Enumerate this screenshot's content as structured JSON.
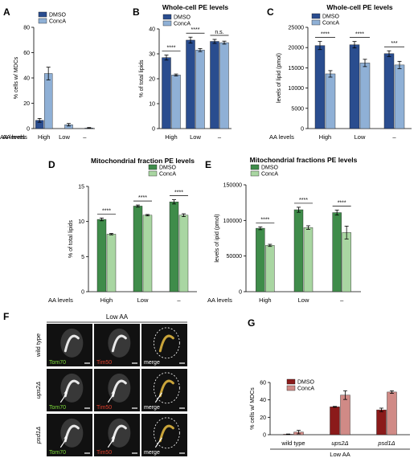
{
  "colors": {
    "blue_dark": "#2a4d8f",
    "blue_light": "#8fb0d6",
    "green_dark": "#3f8c4a",
    "green_light": "#a9d6a2",
    "red_dark": "#8b1a1a",
    "red_light": "#d08a86",
    "tom70": "#7ddc3a",
    "tim50": "#e0402e",
    "merge": "#ffffff"
  },
  "chart_data": [
    {
      "id": "A",
      "type": "bar",
      "panel_letter": "A",
      "title": "",
      "ylabel": "% cells w/ MDCs",
      "ylim": [
        0,
        80
      ],
      "yticks": [
        0,
        20,
        40,
        60,
        80
      ],
      "row_label": "AA levels",
      "categories": [
        "High",
        "Low",
        "–"
      ],
      "legend": "top-left",
      "colors": [
        "#2a4d8f",
        "#8fb0d6"
      ],
      "series": [
        {
          "name": "DMSO",
          "values": [
            6.5,
            0,
            0
          ],
          "errors": [
            1.5,
            0,
            0
          ]
        },
        {
          "name": "ConcA",
          "values": [
            43.5,
            3,
            0.5
          ],
          "errors": [
            5,
            1,
            0.3
          ]
        }
      ],
      "significance": []
    },
    {
      "id": "B",
      "type": "bar",
      "panel_letter": "B",
      "title": "Whole-cell PE levels",
      "ylabel": "% of total lipids",
      "ylim": [
        0,
        40
      ],
      "yticks": [
        0,
        10,
        20,
        30,
        40
      ],
      "row_label": "AA levels",
      "categories": [
        "High",
        "Low",
        "–"
      ],
      "legend": "top-left",
      "colors": [
        "#2a4d8f",
        "#8fb0d6"
      ],
      "series": [
        {
          "name": "DMSO",
          "values": [
            28.5,
            35.5,
            35
          ],
          "errors": [
            1,
            1.2,
            0.8
          ]
        },
        {
          "name": "ConcA",
          "values": [
            21.5,
            31.5,
            34.5
          ],
          "errors": [
            0.4,
            0.6,
            0.6
          ]
        }
      ],
      "significance": [
        "****",
        "****",
        "n.s."
      ]
    },
    {
      "id": "C",
      "type": "bar",
      "panel_letter": "C",
      "title": "Whole-cell PE levels",
      "ylabel": "levels of lipid (pmol)",
      "ylim": [
        0,
        25000
      ],
      "yticks": [
        0,
        5000,
        10000,
        15000,
        20000,
        25000
      ],
      "row_label": "AA levels",
      "categories": [
        "High",
        "Low",
        "–"
      ],
      "legend": "top-left",
      "colors": [
        "#2a4d8f",
        "#8fb0d6"
      ],
      "series": [
        {
          "name": "DMSO",
          "values": [
            20500,
            20700,
            18500
          ],
          "errors": [
            1000,
            800,
            700
          ]
        },
        {
          "name": "ConcA",
          "values": [
            13500,
            16200,
            15700
          ],
          "errors": [
            800,
            900,
            900
          ]
        }
      ],
      "significance": [
        "****",
        "****",
        "***"
      ]
    },
    {
      "id": "D",
      "type": "bar",
      "panel_letter": "D",
      "title": "Mitochondrial fraction PE levels",
      "ylabel": "% of total lipids",
      "ylim": [
        0,
        15
      ],
      "yticks": [
        0,
        5,
        10,
        15
      ],
      "row_label": "AA levels",
      "categories": [
        "High",
        "Low",
        "–"
      ],
      "legend": "top-right",
      "colors": [
        "#3f8c4a",
        "#a9d6a2"
      ],
      "series": [
        {
          "name": "DMSO",
          "values": [
            10.3,
            12.2,
            12.8
          ],
          "errors": [
            0.2,
            0.15,
            0.3
          ]
        },
        {
          "name": "ConcA",
          "values": [
            8.2,
            10.9,
            10.9
          ],
          "errors": [
            0.1,
            0.1,
            0.2
          ]
        }
      ],
      "significance": [
        "****",
        "****",
        "****"
      ]
    },
    {
      "id": "E",
      "type": "bar",
      "panel_letter": "E",
      "title": "Mitochondrial fractions PE levels",
      "ylabel": "levels of ipid (pmol)",
      "ylim": [
        0,
        150000
      ],
      "yticks": [
        0,
        50000,
        100000,
        150000
      ],
      "row_label": "AA levels",
      "categories": [
        "High",
        "Low",
        "–"
      ],
      "legend": "top-left",
      "colors": [
        "#3f8c4a",
        "#a9d6a2"
      ],
      "series": [
        {
          "name": "DMSO",
          "values": [
            89000,
            115000,
            111000
          ],
          "errors": [
            2000,
            3500,
            3500
          ]
        },
        {
          "name": "ConcA",
          "values": [
            65000,
            90000,
            83000
          ],
          "errors": [
            1500,
            2500,
            9000
          ]
        }
      ],
      "significance": [
        "****",
        "****",
        "****"
      ]
    },
    {
      "id": "G",
      "type": "bar",
      "panel_letter": "G",
      "title": "",
      "ylabel": "% cells w/ MDCs",
      "ylim": [
        0,
        60
      ],
      "yticks": [
        0,
        20,
        40,
        60
      ],
      "row_label": "",
      "group_label": "Low AA",
      "categories": [
        "wild type",
        "ups2Δ",
        "psd1Δ"
      ],
      "italic_categories": [
        false,
        true,
        true
      ],
      "legend": "top-left",
      "colors": [
        "#8b1a1a",
        "#d08a86"
      ],
      "series": [
        {
          "name": "DMSO",
          "values": [
            0.5,
            32,
            28.5
          ],
          "errors": [
            0.3,
            0.5,
            2
          ]
        },
        {
          "name": "ConcA",
          "values": [
            3,
            45.5,
            49
          ],
          "errors": [
            2,
            5,
            1.5
          ]
        }
      ],
      "significance": []
    }
  ],
  "micrographs": {
    "panel_letter": "F",
    "header": "Low AA",
    "rows": [
      {
        "label": "wild type",
        "italic": false,
        "channels": [
          "Tom70",
          "Tim50",
          "merge"
        ]
      },
      {
        "label": "ups2Δ",
        "italic": true,
        "channels": [
          "Tom70",
          "Tim50",
          "merge"
        ]
      },
      {
        "label": "psd1Δ",
        "italic": true,
        "channels": [
          "Tom70",
          "Tim50",
          "merge"
        ]
      }
    ]
  }
}
